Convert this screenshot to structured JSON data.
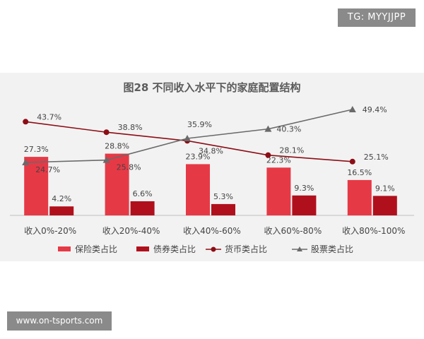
{
  "watermark_top": "TG: MYYJJPP",
  "watermark_bottom": "www.on-tsports.com",
  "chart_data": {
    "type": "bar",
    "title": "图28 不同收入水平下的家庭配置结构",
    "categories": [
      "收入0%-20%",
      "收入20%-40%",
      "收入40%-60%",
      "收入60%-80%",
      "收入80%-100%"
    ],
    "series": [
      {
        "name": "保险类占比",
        "kind": "bar",
        "color": "#e63946",
        "values": [
          27.3,
          28.8,
          23.9,
          22.3,
          16.5
        ],
        "labels": [
          "27.3%",
          "28.8%",
          "23.9%",
          "22.3%",
          "16.5%"
        ]
      },
      {
        "name": "债券类占比",
        "kind": "bar",
        "color": "#b0101c",
        "values": [
          4.2,
          6.6,
          5.3,
          9.3,
          9.1
        ],
        "labels": [
          "4.2%",
          "6.6%",
          "5.3%",
          "9.3%",
          "9.1%"
        ]
      },
      {
        "name": "货币类占比",
        "kind": "line",
        "marker": "circle",
        "color": "#8b0e16",
        "values": [
          43.7,
          38.8,
          34.8,
          28.1,
          25.1
        ],
        "labels": [
          "43.7%",
          "38.8%",
          "34.8%",
          "28.1%",
          "25.1%"
        ]
      },
      {
        "name": "股票类占比",
        "kind": "line",
        "marker": "triangle",
        "color": "#6a6a6a",
        "values": [
          24.7,
          25.8,
          35.9,
          40.3,
          49.4
        ],
        "labels": [
          "24.7%",
          "25.8%",
          "35.9%",
          "40.3%",
          "49.4%"
        ]
      }
    ],
    "ylim": [
      0,
      55
    ],
    "grid": false,
    "legend_position": "bottom"
  }
}
